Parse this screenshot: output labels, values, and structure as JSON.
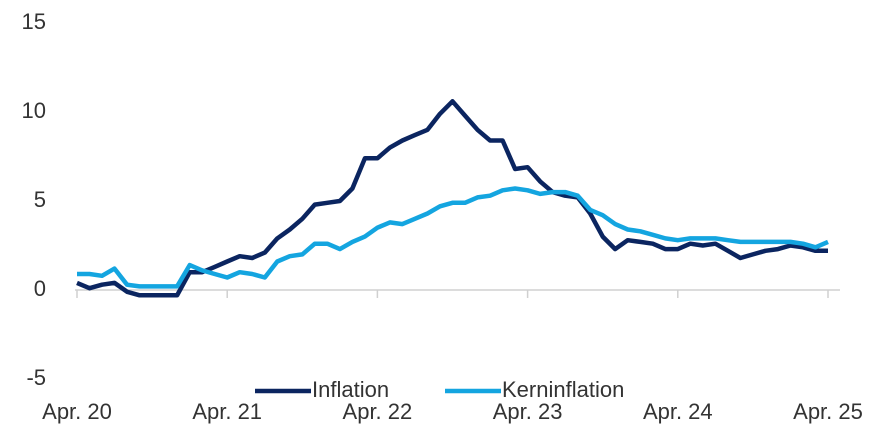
{
  "chart_data": {
    "type": "line",
    "categories": [
      "Apr. 20",
      null,
      null,
      null,
      null,
      null,
      null,
      null,
      null,
      null,
      null,
      null,
      "Apr. 21",
      null,
      null,
      null,
      null,
      null,
      null,
      null,
      null,
      null,
      null,
      null,
      "Apr. 22",
      null,
      null,
      null,
      null,
      null,
      null,
      null,
      null,
      null,
      null,
      null,
      "Apr. 23",
      null,
      null,
      null,
      null,
      null,
      null,
      null,
      null,
      null,
      null,
      null,
      "Apr. 24",
      null,
      null,
      null,
      null,
      null,
      null,
      null,
      null,
      null,
      null,
      null,
      "Apr. 25"
    ],
    "series": [
      {
        "name": "Inflation",
        "color": "#0b2560",
        "values": [
          0.4,
          0.1,
          0.3,
          0.4,
          -0.1,
          -0.3,
          -0.3,
          -0.3,
          -0.3,
          1.0,
          1.0,
          1.3,
          1.6,
          1.9,
          1.8,
          2.1,
          2.9,
          3.4,
          4.0,
          4.8,
          4.9,
          5.0,
          5.7,
          7.4,
          7.4,
          8.0,
          8.4,
          8.7,
          9.0,
          9.9,
          10.6,
          9.8,
          9.0,
          8.4,
          8.4,
          6.8,
          6.9,
          6.1,
          5.5,
          5.3,
          5.2,
          4.3,
          3.0,
          2.3,
          2.8,
          2.7,
          2.6,
          2.3,
          2.3,
          2.6,
          2.5,
          2.6,
          2.2,
          1.8,
          2.0,
          2.2,
          2.3,
          2.5,
          2.4,
          2.2,
          2.2
        ]
      },
      {
        "name": "Kerninflation",
        "color": "#14a5e0",
        "values": [
          0.9,
          0.9,
          0.8,
          1.2,
          0.3,
          0.2,
          0.2,
          0.2,
          0.2,
          1.4,
          1.1,
          0.9,
          0.7,
          1.0,
          0.9,
          0.7,
          1.6,
          1.9,
          2.0,
          2.6,
          2.6,
          2.3,
          2.7,
          3.0,
          3.5,
          3.8,
          3.7,
          4.0,
          4.3,
          4.7,
          4.9,
          4.9,
          5.2,
          5.3,
          5.6,
          5.7,
          5.6,
          5.4,
          5.5,
          5.5,
          5.3,
          4.5,
          4.2,
          3.7,
          3.4,
          3.3,
          3.1,
          2.9,
          2.8,
          2.9,
          2.9,
          2.9,
          2.8,
          2.7,
          2.7,
          2.7,
          2.7,
          2.7,
          2.6,
          2.4,
          2.7
        ]
      }
    ],
    "ylim": [
      -5,
      15
    ],
    "yticks": [
      -5,
      0,
      5,
      10,
      15
    ],
    "grid": false,
    "legend": "bottom"
  }
}
